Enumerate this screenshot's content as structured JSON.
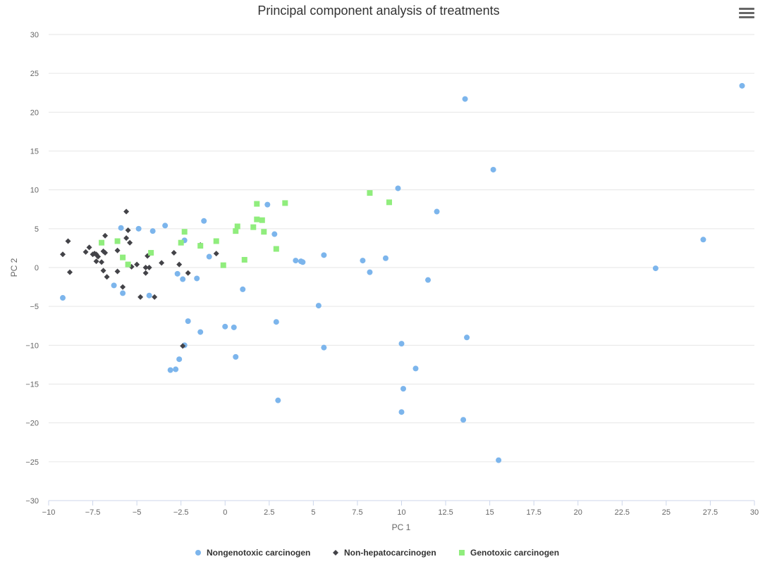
{
  "menu": {
    "icon": "hamburger-menu-icon"
  },
  "chart_data": {
    "type": "scatter",
    "title": "Principal component analysis of treatments",
    "xlabel": "PC 1",
    "ylabel": "PC 2",
    "xlim": [
      -10,
      30
    ],
    "ylim": [
      -30,
      30
    ],
    "x_ticks": [
      -10,
      -7.5,
      -5,
      -2.5,
      0,
      2.5,
      5,
      7.5,
      10,
      12.5,
      15,
      17.5,
      20,
      22.5,
      25,
      27.5,
      30
    ],
    "y_ticks": [
      -30,
      -25,
      -20,
      -15,
      -10,
      -5,
      0,
      5,
      10,
      15,
      20,
      25,
      30
    ],
    "x_tick_labels": [
      "−10",
      "−7.5",
      "−5",
      "−2.5",
      "0",
      "2.5",
      "5",
      "7.5",
      "10",
      "12.5",
      "15",
      "17.5",
      "20",
      "22.5",
      "25",
      "27.5",
      "30"
    ],
    "y_tick_labels": [
      "−30",
      "−25",
      "−20",
      "−15",
      "−10",
      "−5",
      "0",
      "5",
      "10",
      "15",
      "20",
      "25",
      "30"
    ],
    "grid": "horizontal",
    "legend_position": "bottom-center",
    "series": [
      {
        "name": "Nongenotoxic carcinogen",
        "marker": "circle",
        "color": "#7cb5ec",
        "points": [
          [
            -9.2,
            -3.9
          ],
          [
            -6.3,
            -2.3
          ],
          [
            -5.9,
            5.1
          ],
          [
            -5.8,
            -3.3
          ],
          [
            -4.9,
            5.0
          ],
          [
            -4.3,
            -3.6
          ],
          [
            -4.1,
            4.7
          ],
          [
            -3.4,
            5.4
          ],
          [
            -3.1,
            -13.2
          ],
          [
            -2.8,
            -13.1
          ],
          [
            -2.7,
            -0.8
          ],
          [
            -2.6,
            -11.8
          ],
          [
            -2.4,
            -1.5
          ],
          [
            -2.3,
            -10.0
          ],
          [
            -2.3,
            3.5
          ],
          [
            -2.1,
            -6.9
          ],
          [
            -1.6,
            -1.4
          ],
          [
            -1.4,
            -8.3
          ],
          [
            -1.2,
            6.0
          ],
          [
            -0.9,
            1.4
          ],
          [
            0.0,
            -7.6
          ],
          [
            0.5,
            -7.7
          ],
          [
            0.6,
            -11.5
          ],
          [
            1.0,
            -2.8
          ],
          [
            2.4,
            8.1
          ],
          [
            2.8,
            4.3
          ],
          [
            2.9,
            -7.0
          ],
          [
            3.0,
            -17.1
          ],
          [
            4.0,
            0.9
          ],
          [
            4.3,
            0.8
          ],
          [
            4.4,
            0.7
          ],
          [
            5.3,
            -4.9
          ],
          [
            5.6,
            1.6
          ],
          [
            5.6,
            -10.3
          ],
          [
            7.8,
            0.9
          ],
          [
            8.2,
            -0.6
          ],
          [
            9.1,
            1.2
          ],
          [
            9.8,
            10.2
          ],
          [
            10.0,
            -9.8
          ],
          [
            10.0,
            -18.6
          ],
          [
            10.1,
            -15.6
          ],
          [
            10.8,
            -13.0
          ],
          [
            11.5,
            -1.6
          ],
          [
            12.0,
            7.2
          ],
          [
            13.5,
            -19.6
          ],
          [
            13.6,
            21.7
          ],
          [
            13.7,
            -9.0
          ],
          [
            15.2,
            12.6
          ],
          [
            15.5,
            -24.8
          ],
          [
            24.4,
            -0.1
          ],
          [
            27.1,
            3.6
          ],
          [
            29.3,
            23.4
          ]
        ]
      },
      {
        "name": "Non-hepatocarcinogen",
        "marker": "diamond",
        "color": "#434348",
        "points": [
          [
            -9.2,
            1.7
          ],
          [
            -8.9,
            3.4
          ],
          [
            -8.8,
            -0.6
          ],
          [
            -7.9,
            2.0
          ],
          [
            -7.7,
            2.6
          ],
          [
            -7.5,
            1.7
          ],
          [
            -7.4,
            1.8
          ],
          [
            -7.3,
            1.7
          ],
          [
            -7.3,
            0.8
          ],
          [
            -7.2,
            1.4
          ],
          [
            -7.0,
            0.7
          ],
          [
            -6.9,
            -0.4
          ],
          [
            -6.9,
            2.1
          ],
          [
            -6.8,
            1.9
          ],
          [
            -6.8,
            4.1
          ],
          [
            -6.7,
            -1.2
          ],
          [
            -6.1,
            2.2
          ],
          [
            -6.1,
            -0.5
          ],
          [
            -5.8,
            -2.5
          ],
          [
            -5.6,
            7.2
          ],
          [
            -5.6,
            3.8
          ],
          [
            -5.5,
            4.8
          ],
          [
            -5.4,
            3.2
          ],
          [
            -5.3,
            0.1
          ],
          [
            -5.0,
            0.4
          ],
          [
            -4.8,
            -3.8
          ],
          [
            -4.5,
            0.0
          ],
          [
            -4.5,
            -0.7
          ],
          [
            -4.4,
            1.5
          ],
          [
            -4.3,
            0.0
          ],
          [
            -4.0,
            -3.8
          ],
          [
            -3.6,
            0.6
          ],
          [
            -2.9,
            1.9
          ],
          [
            -2.6,
            0.4
          ],
          [
            -2.4,
            -10.1
          ],
          [
            -2.1,
            -0.7
          ],
          [
            -1.4,
            2.9
          ],
          [
            -0.5,
            1.8
          ]
        ]
      },
      {
        "name": "Genotoxic carcinogen",
        "marker": "square",
        "color": "#90ed7d",
        "points": [
          [
            -7.0,
            3.2
          ],
          [
            -6.1,
            3.4
          ],
          [
            -5.8,
            1.3
          ],
          [
            -5.5,
            0.4
          ],
          [
            -4.2,
            1.9
          ],
          [
            -2.5,
            3.2
          ],
          [
            -2.3,
            4.6
          ],
          [
            -1.4,
            2.8
          ],
          [
            -0.5,
            3.4
          ],
          [
            -0.1,
            0.3
          ],
          [
            0.6,
            4.7
          ],
          [
            0.7,
            5.3
          ],
          [
            1.1,
            1.0
          ],
          [
            1.6,
            5.2
          ],
          [
            1.8,
            6.2
          ],
          [
            1.8,
            8.2
          ],
          [
            2.1,
            6.1
          ],
          [
            2.2,
            4.6
          ],
          [
            2.9,
            2.4
          ],
          [
            3.4,
            8.3
          ],
          [
            8.2,
            9.6
          ],
          [
            9.3,
            8.4
          ]
        ]
      }
    ]
  }
}
